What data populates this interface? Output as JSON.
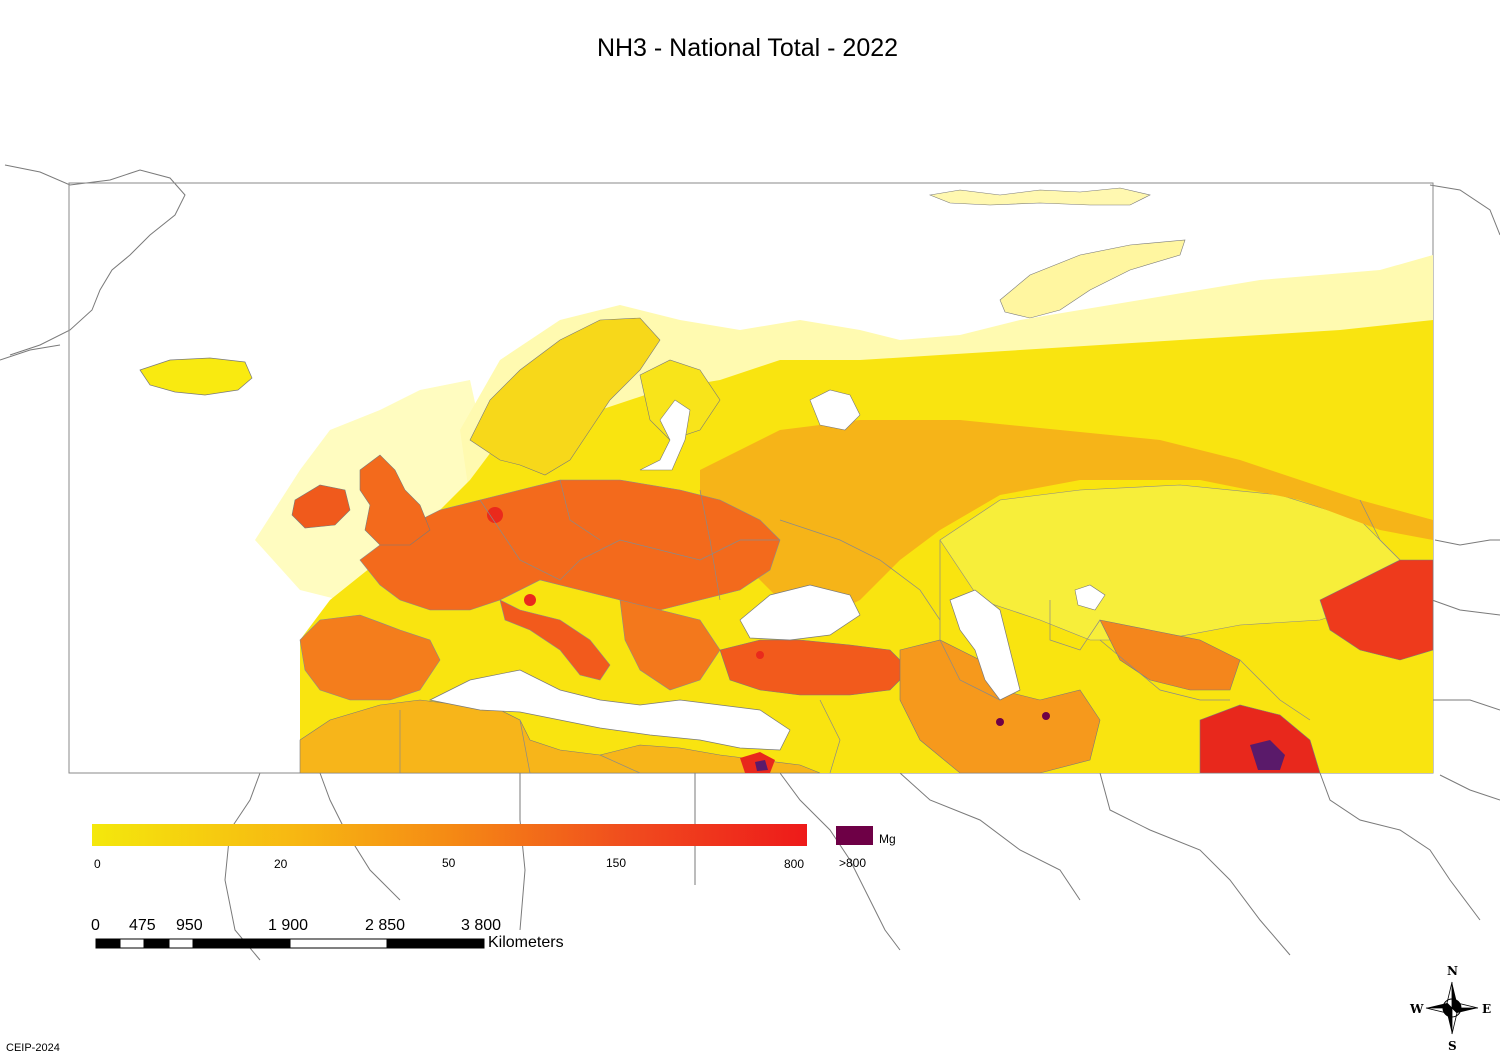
{
  "title": "NH3 - National Total - 2022",
  "legend": {
    "ticks": [
      "0",
      "20",
      "50",
      "150",
      "800"
    ],
    "overflow_label": ">800",
    "unit": "Mg",
    "gradient_colors": [
      "#f4e80c",
      "#f7b812",
      "#f58a14",
      "#f04c1e",
      "#ee1a1a"
    ],
    "overflow_color": "#6e0046"
  },
  "scale_bar": {
    "ticks": [
      "0",
      "475",
      "950",
      "1 900",
      "2 850",
      "3 800"
    ],
    "unit": "Kilometers"
  },
  "compass": {
    "n": "N",
    "s": "S",
    "e": "E",
    "w": "W"
  },
  "credit": "CEIP-2024",
  "colors": {
    "very_low": "#fffcc0",
    "low": "#f9ea10",
    "mid": "#f7b612",
    "high": "#f3721c",
    "very_high": "#ea2a1c",
    "extreme": "#5a1a6a",
    "outline": "#7a7a7a"
  }
}
